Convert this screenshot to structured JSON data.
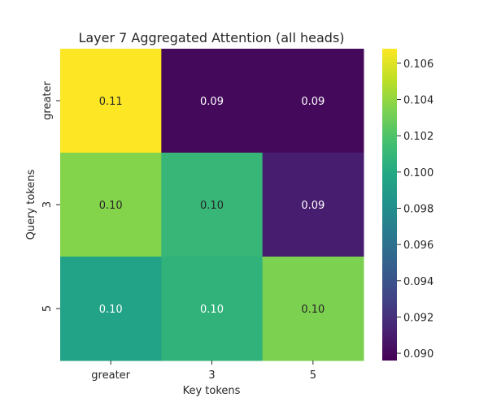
{
  "chart_data": {
    "type": "heatmap",
    "title": "Layer 7 Aggregated Attention (all heads)",
    "xlabel": "Key tokens",
    "ylabel": "Query tokens",
    "x_categories": [
      "greater",
      "3",
      "5"
    ],
    "y_categories": [
      "greater",
      "3",
      "5"
    ],
    "values": [
      [
        0.1068,
        0.09,
        0.09
      ],
      [
        0.1036,
        0.101,
        0.091
      ],
      [
        0.0995,
        0.1007,
        0.1034
      ]
    ],
    "cell_labels": [
      [
        "0.11",
        "0.09",
        "0.09"
      ],
      [
        "0.10",
        "0.10",
        "0.09"
      ],
      [
        "0.10",
        "0.10",
        "0.10"
      ]
    ],
    "colorbar": {
      "colormap": "viridis",
      "range": [
        0.0896,
        0.1068
      ],
      "ticks": [
        "0.090",
        "0.092",
        "0.094",
        "0.096",
        "0.098",
        "0.100",
        "0.102",
        "0.104",
        "0.106"
      ]
    }
  }
}
